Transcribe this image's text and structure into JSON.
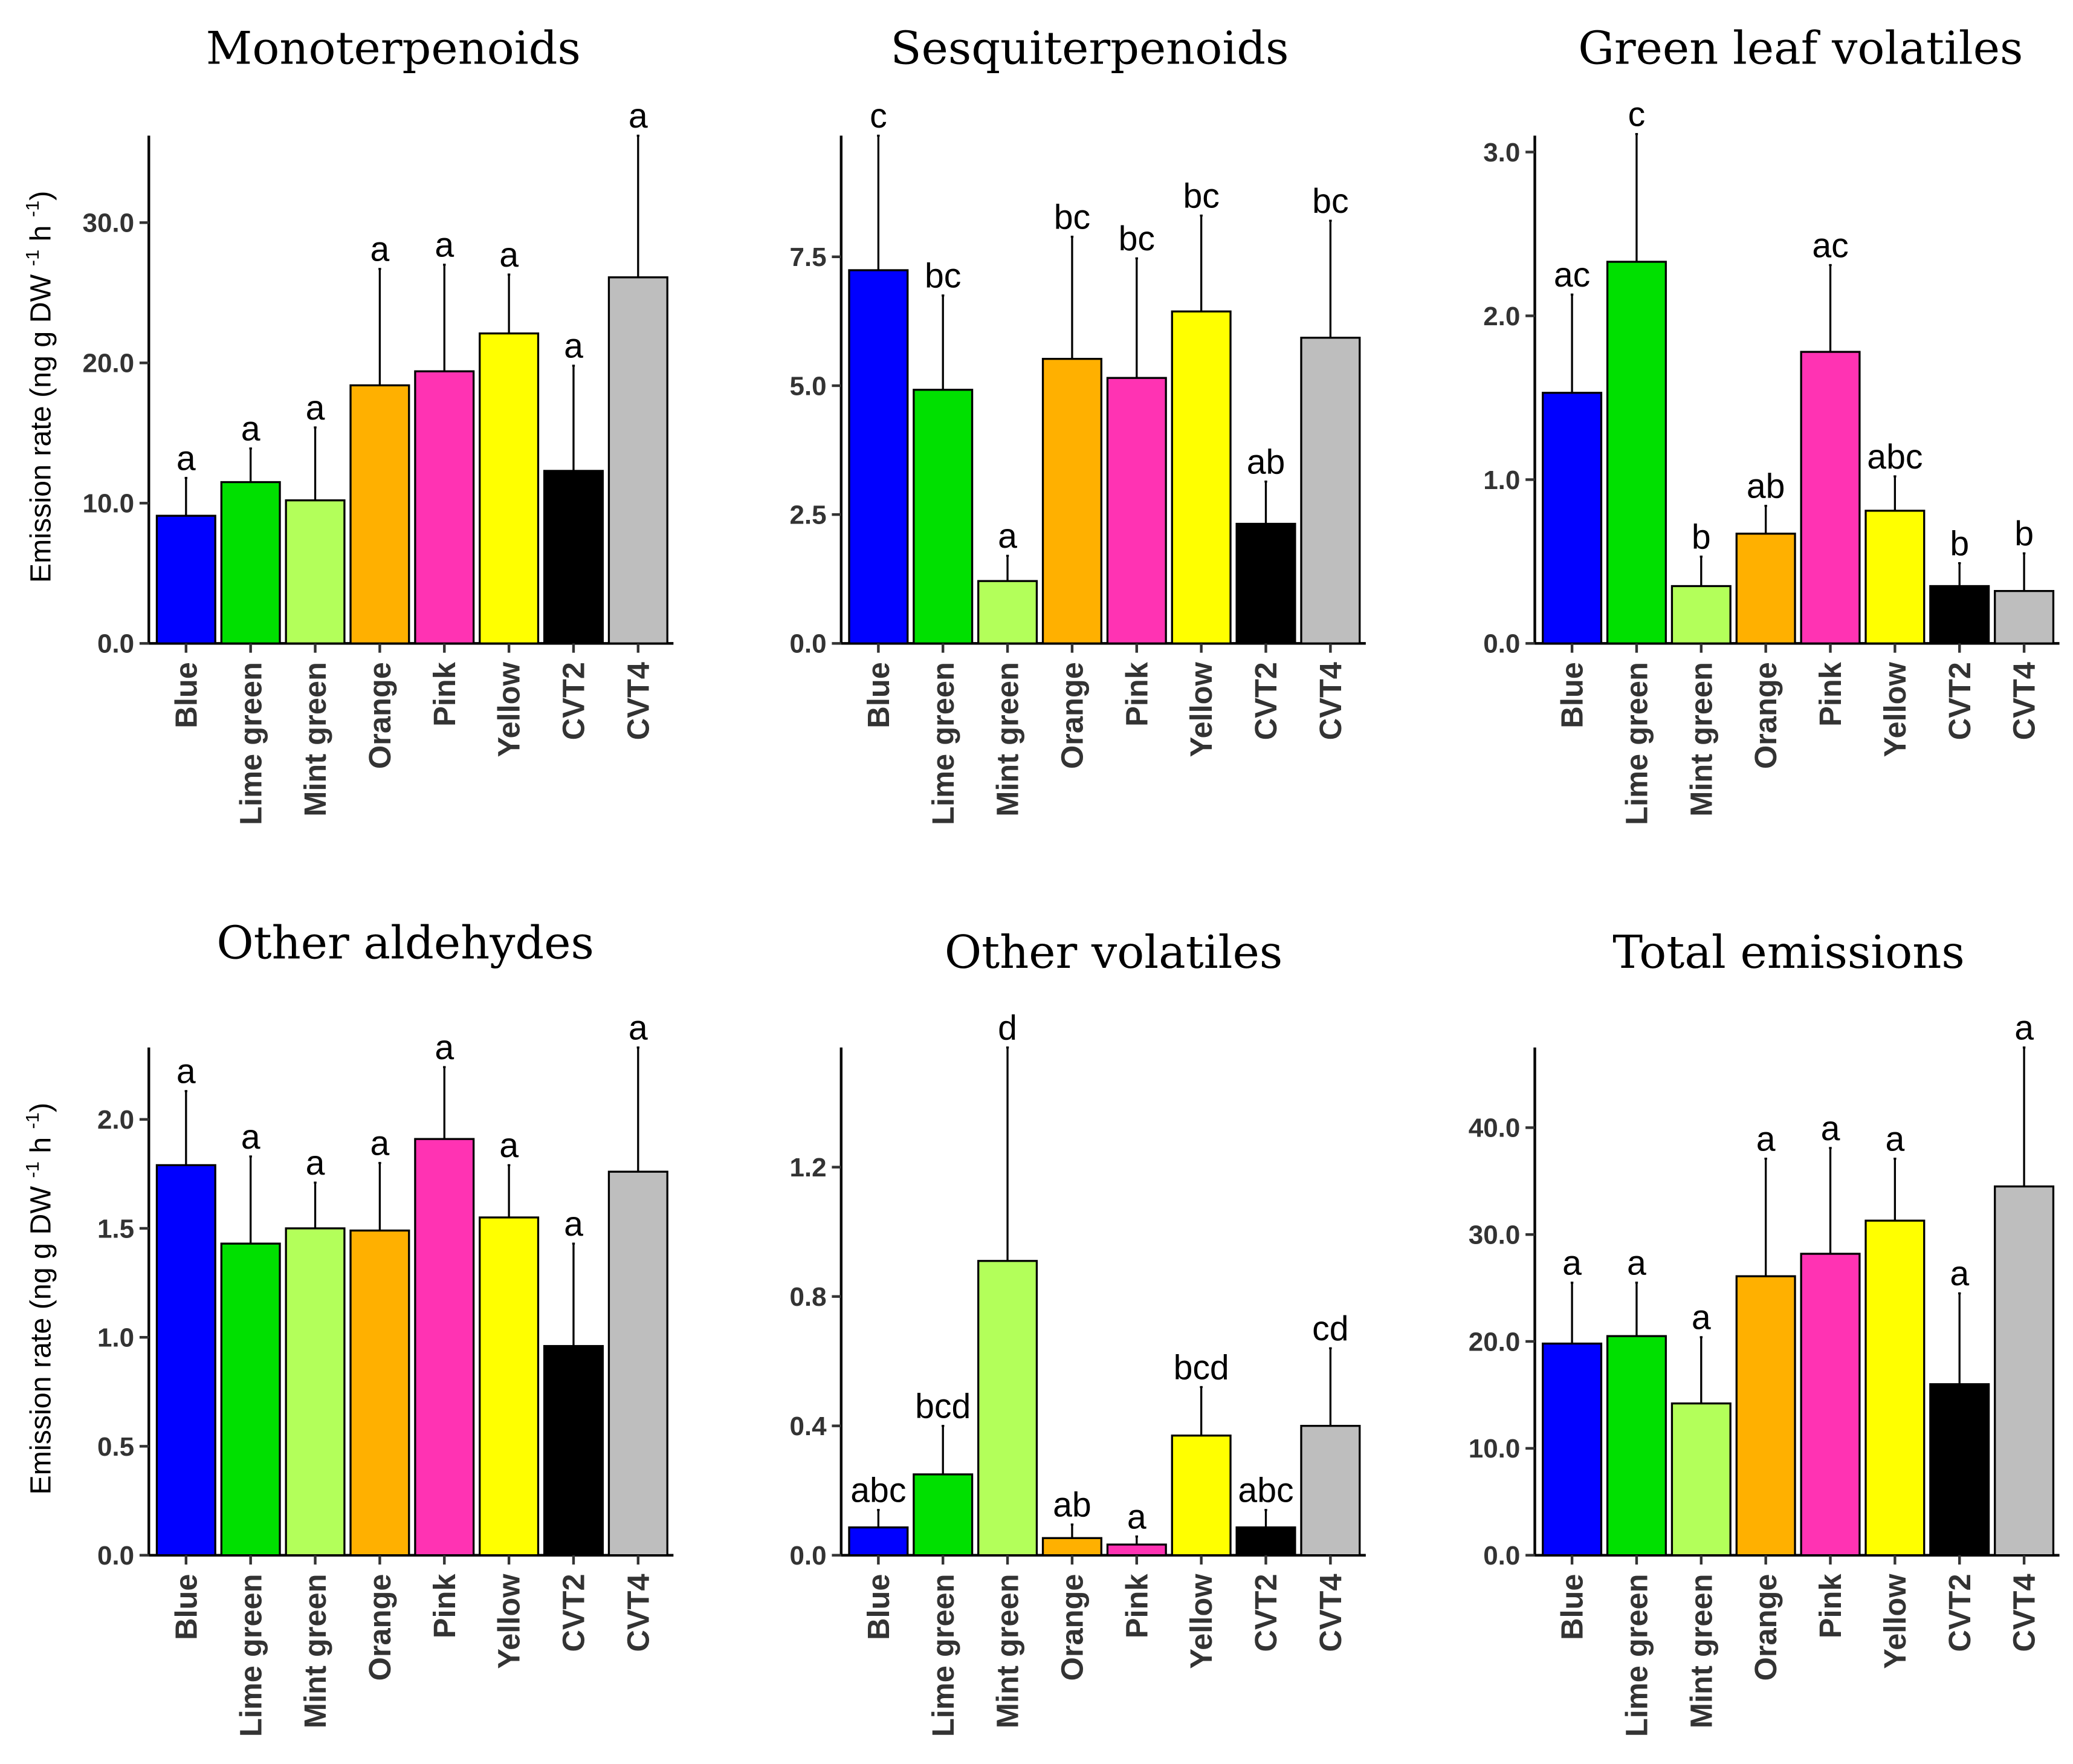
{
  "chart_data": [
    {
      "type": "bar",
      "title": "Monoterpenoids",
      "ylabel": "Emission rate (ng g DW -1 h-1)",
      "categories": [
        "Blue",
        "Lime green",
        "Mint green",
        "Orange",
        "Pink",
        "Yellow",
        "CVT2",
        "CVT4"
      ],
      "values": [
        9.1,
        11.5,
        10.2,
        18.4,
        19.4,
        22.1,
        12.3,
        26.1
      ],
      "error_upper": [
        11.8,
        13.9,
        15.4,
        26.7,
        27.0,
        26.3,
        19.8,
        36.2
      ],
      "letters": [
        "a",
        "a",
        "a",
        "a",
        "a",
        "a",
        "a",
        "a"
      ],
      "ylim": [
        0,
        36.2
      ],
      "yticks": [
        0,
        10,
        20,
        30
      ],
      "ytick_labels": [
        "0.0",
        "10.0",
        "20.0",
        "30.0"
      ]
    },
    {
      "type": "bar",
      "title": "Sesquiterpenoids",
      "ylabel": "",
      "categories": [
        "Blue",
        "Lime green",
        "Mint green",
        "Orange",
        "Pink",
        "Yellow",
        "CVT2",
        "CVT4"
      ],
      "values": [
        7.24,
        4.92,
        1.21,
        5.52,
        5.15,
        6.44,
        2.32,
        5.93
      ],
      "error_upper": [
        9.85,
        6.75,
        1.7,
        7.89,
        7.47,
        8.3,
        3.14,
        8.2
      ],
      "letters": [
        "c",
        "bc",
        "a",
        "bc",
        "bc",
        "bc",
        "ab",
        "bc"
      ],
      "ylim": [
        0,
        9.85
      ],
      "yticks": [
        0,
        2.5,
        5,
        7.5
      ],
      "ytick_labels": [
        "0.0",
        "2.5",
        "5.0",
        "7.5"
      ]
    },
    {
      "type": "bar",
      "title": "Green leaf volatiles",
      "ylabel": "",
      "categories": [
        "Blue",
        "Lime green",
        "Mint green",
        "Orange",
        "Pink",
        "Yellow",
        "CVT2",
        "CVT4"
      ],
      "values": [
        1.53,
        2.33,
        0.35,
        0.67,
        1.78,
        0.81,
        0.35,
        0.32
      ],
      "error_upper": [
        2.13,
        3.11,
        0.53,
        0.84,
        2.31,
        1.02,
        0.49,
        0.55
      ],
      "letters": [
        "ac",
        "c",
        "b",
        "ab",
        "ac",
        "abc",
        "b",
        "b"
      ],
      "ylim": [
        0,
        3.1
      ],
      "yticks": [
        0,
        1,
        2,
        3
      ],
      "ytick_labels": [
        "0.0",
        "1.0",
        "2.0",
        "3.0"
      ]
    },
    {
      "type": "bar",
      "title": "Other aldehydes",
      "ylabel": "Emission rate (ng g DW -1 h-1)",
      "categories": [
        "Blue",
        "Lime green",
        "Mint green",
        "Orange",
        "Pink",
        "Yellow",
        "CVT2",
        "CVT4"
      ],
      "values": [
        1.79,
        1.43,
        1.5,
        1.49,
        1.91,
        1.55,
        0.96,
        1.76
      ],
      "error_upper": [
        2.13,
        1.83,
        1.71,
        1.8,
        2.24,
        1.79,
        1.43,
        2.33
      ],
      "letters": [
        "a",
        "a",
        "a",
        "a",
        "a",
        "a",
        "a",
        "a"
      ],
      "ylim": [
        0,
        2.33
      ],
      "yticks": [
        0,
        0.5,
        1,
        1.5,
        2
      ],
      "ytick_labels": [
        "0.0",
        "0.5",
        "1.0",
        "1.5",
        "2.0"
      ]
    },
    {
      "type": "bar",
      "title": "Other volatiles",
      "ylabel": "",
      "categories": [
        "Blue",
        "Lime green",
        "Mint green",
        "Orange",
        "Pink",
        "Yellow",
        "CVT2",
        "CVT4"
      ],
      "values": [
        0.086,
        0.25,
        0.91,
        0.053,
        0.033,
        0.37,
        0.086,
        0.4
      ],
      "error_upper": [
        0.14,
        0.4,
        1.57,
        0.095,
        0.058,
        0.52,
        0.14,
        0.64
      ],
      "letters": [
        "abc",
        "bcd",
        "d",
        "ab",
        "a",
        "bcd",
        "abc",
        "cd"
      ],
      "ylim": [
        0,
        1.57
      ],
      "yticks": [
        0,
        0.4,
        0.8,
        1.2
      ],
      "ytick_labels": [
        "0.0",
        "0.4",
        "0.8",
        "1.2"
      ]
    },
    {
      "type": "bar",
      "title": "Total emissions",
      "ylabel": "",
      "categories": [
        "Blue",
        "Lime green",
        "Mint green",
        "Orange",
        "Pink",
        "Yellow",
        "CVT2",
        "CVT4"
      ],
      "values": [
        19.8,
        20.5,
        14.2,
        26.1,
        28.2,
        31.3,
        16.0,
        34.5
      ],
      "error_upper": [
        25.5,
        25.5,
        20.4,
        37.1,
        38.1,
        37.1,
        24.5,
        47.5
      ],
      "letters": [
        "a",
        "a",
        "a",
        "a",
        "a",
        "a",
        "a",
        "a"
      ],
      "ylim": [
        0,
        47.5
      ],
      "yticks": [
        0,
        10,
        20,
        30,
        40
      ],
      "ytick_labels": [
        "0.0",
        "10.0",
        "20.0",
        "30.0",
        "40.0"
      ]
    }
  ],
  "colors": [
    "#0000ff",
    "#00e000",
    "#b3ff5a",
    "#ffb000",
    "#ff33b3",
    "#ffff00",
    "#000000",
    "#bebebe"
  ],
  "ylabel_parts": {
    "main": "Emission rate (ng g DW",
    "sup1": "-1",
    "mid": " h",
    "sup2": "-1",
    "end": ")"
  }
}
